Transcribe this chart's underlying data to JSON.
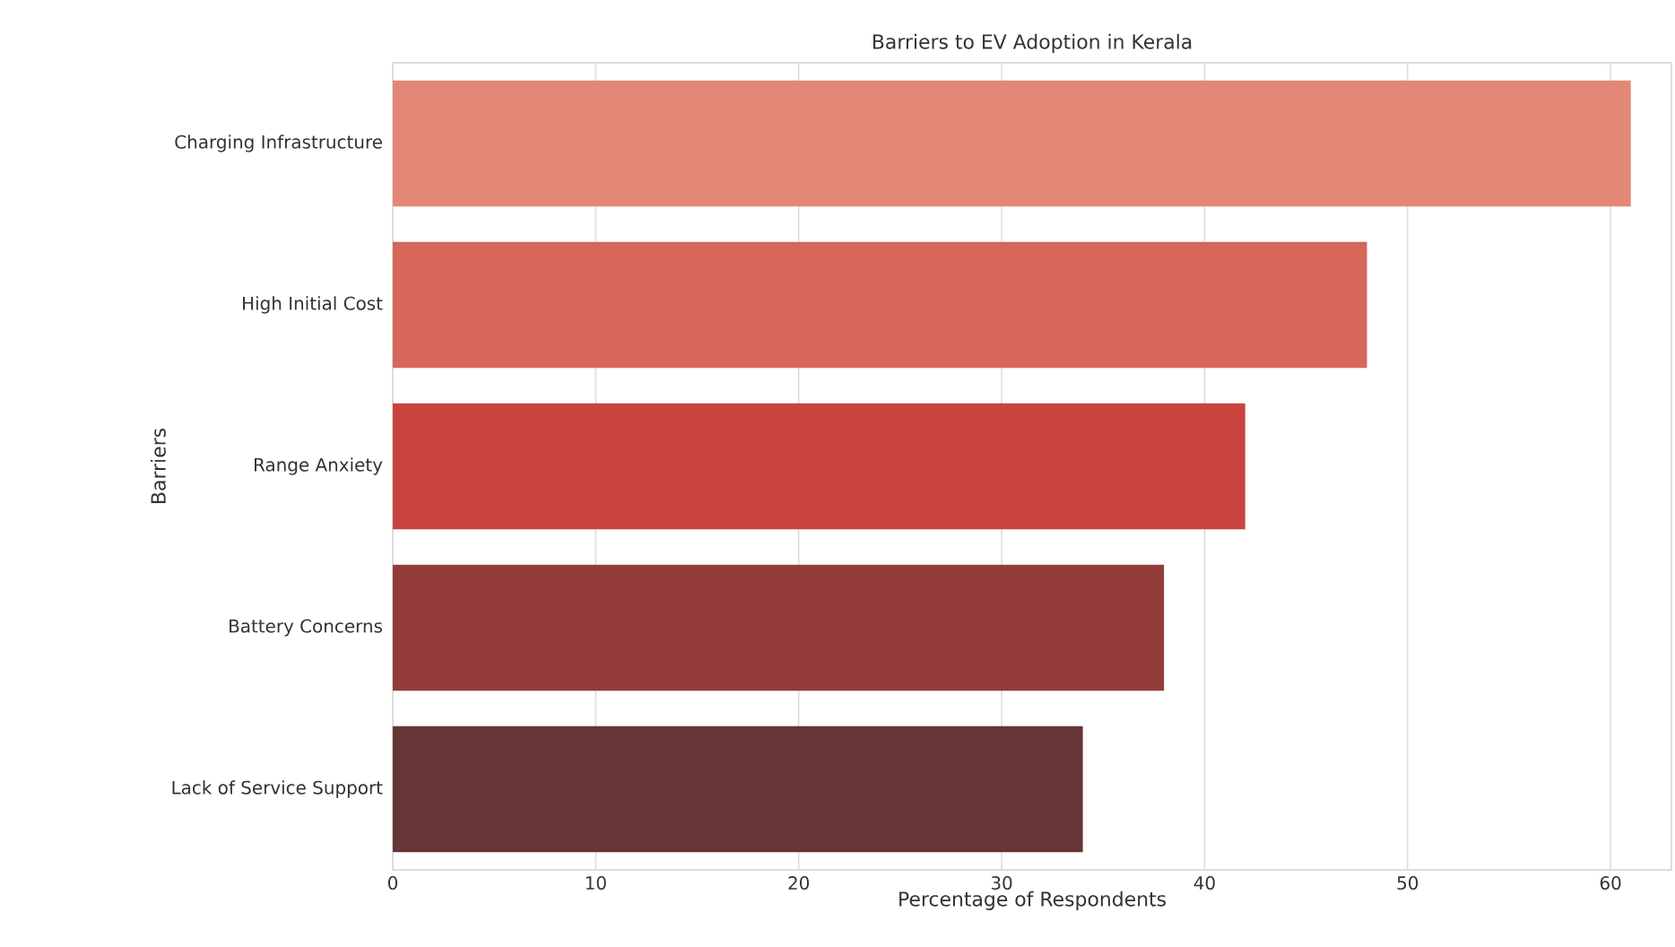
{
  "chart_data": {
    "type": "bar",
    "orientation": "horizontal",
    "title": "Barriers to EV Adoption in Kerala",
    "xlabel": "Percentage of Respondents",
    "ylabel": "Barriers",
    "categories": [
      "Charging Infrastructure",
      "High Initial Cost",
      "Range Anxiety",
      "Battery Concerns",
      "Lack of Service Support"
    ],
    "values": [
      61,
      48,
      42,
      38,
      34
    ],
    "colors": [
      "#e38876",
      "#d6665a",
      "#c9443f",
      "#943c39",
      "#663535"
    ],
    "xlim": [
      0,
      63
    ],
    "xticks": [
      0,
      10,
      20,
      30,
      40,
      50,
      60
    ],
    "grid": "x"
  }
}
